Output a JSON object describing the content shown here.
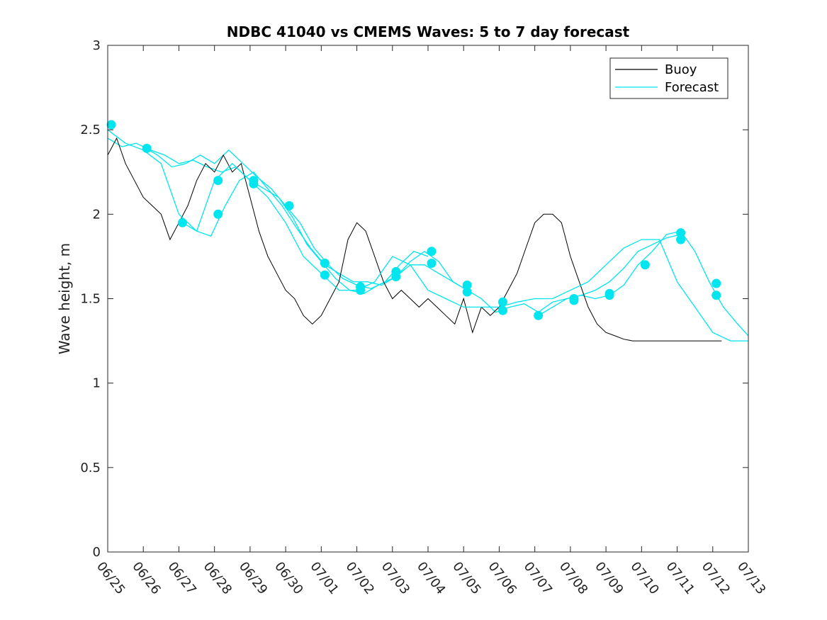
{
  "chart_data": {
    "type": "line",
    "title": "NDBC 41040 vs CMEMS Waves: 5 to 7 day forecast",
    "xlabel": "",
    "ylabel": "Wave height, m",
    "ylim": [
      0,
      3
    ],
    "y_ticks": [
      "0",
      "0.5",
      "1",
      "1.5",
      "2",
      "2.5",
      "3"
    ],
    "x_ticks": [
      "06/25",
      "06/26",
      "06/27",
      "06/28",
      "06/29",
      "06/30",
      "07/01",
      "07/02",
      "07/03",
      "07/04",
      "07/05",
      "07/06",
      "07/07",
      "07/08",
      "07/09",
      "07/10",
      "07/11",
      "07/12",
      "07/13"
    ],
    "grid": false,
    "legend_position": "top-right",
    "legend": [
      "Buoy",
      "Forecast"
    ],
    "colors": {
      "buoy": "#000000",
      "forecast": "#00e5ee",
      "axis": "#262626"
    },
    "series": [
      {
        "name": "Buoy",
        "x": [
          0,
          0.25,
          0.5,
          0.75,
          1,
          1.25,
          1.5,
          1.75,
          2,
          2.25,
          2.5,
          2.75,
          3,
          3.25,
          3.5,
          3.75,
          4,
          4.25,
          4.5,
          4.75,
          5,
          5.25,
          5.5,
          5.75,
          6,
          6.25,
          6.5,
          6.75,
          7,
          7.25,
          7.5,
          7.75,
          8,
          8.25,
          8.5,
          8.75,
          9,
          9.25,
          9.5,
          9.75,
          10,
          10.25,
          10.5,
          10.75,
          11,
          11.25,
          11.5,
          11.75,
          12,
          12.25,
          12.5,
          12.75,
          13,
          13.25,
          13.5,
          13.75,
          14,
          14.25,
          14.5,
          14.75,
          15,
          15.25,
          15.5,
          15.75,
          16,
          16.25,
          16.5,
          16.75,
          17,
          17.25
        ],
        "values": [
          2.35,
          2.45,
          2.3,
          2.2,
          2.1,
          2.05,
          2.0,
          1.85,
          1.95,
          2.05,
          2.2,
          2.3,
          2.25,
          2.35,
          2.25,
          2.3,
          2.1,
          1.9,
          1.75,
          1.65,
          1.55,
          1.5,
          1.4,
          1.35,
          1.4,
          1.5,
          1.6,
          1.85,
          1.95,
          1.9,
          1.75,
          1.6,
          1.5,
          1.55,
          1.5,
          1.45,
          1.5,
          1.45,
          1.4,
          1.35,
          1.5,
          1.3,
          1.45,
          1.4,
          1.45,
          1.55,
          1.65,
          1.8,
          1.95,
          2.0,
          2.0,
          1.95,
          1.75,
          1.6,
          1.45,
          1.35,
          1.3,
          1.28,
          1.26,
          1.25,
          1.25,
          1.25,
          1.25,
          1.25,
          1.25,
          1.25,
          1.25,
          1.25,
          1.25,
          1.25
        ]
      },
      {
        "name": "Forecast",
        "x": [
          0,
          0.5,
          1,
          1.5,
          2,
          2.5,
          3,
          3.5,
          4,
          4.5,
          5,
          5.5,
          6,
          6.5,
          7,
          7.5,
          8,
          8.5,
          9,
          9.5,
          10,
          10.5,
          11,
          11.5,
          12,
          12.5,
          13,
          13.5,
          14,
          14.5,
          15,
          15.5,
          16,
          16.5,
          17,
          17.5,
          18
        ],
        "values": [
          2.5,
          2.42,
          2.38,
          2.3,
          2.0,
          1.9,
          2.2,
          2.3,
          2.2,
          2.1,
          1.95,
          1.75,
          1.65,
          1.55,
          1.55,
          1.6,
          1.75,
          1.7,
          1.55,
          1.5,
          1.45,
          1.45,
          1.45,
          1.48,
          1.5,
          1.5,
          1.55,
          1.6,
          1.7,
          1.8,
          1.85,
          1.85,
          1.6,
          1.45,
          1.3,
          1.25,
          1.25
        ]
      }
    ],
    "forecast_markers": [
      {
        "x": 0.1,
        "y": 2.53
      },
      {
        "x": 1.1,
        "y": 2.39
      },
      {
        "x": 2.1,
        "y": 1.95
      },
      {
        "x": 3.1,
        "y": 2.2
      },
      {
        "x": 3.1,
        "y": 2.0
      },
      {
        "x": 4.1,
        "y": 2.2
      },
      {
        "x": 4.1,
        "y": 2.18
      },
      {
        "x": 5.1,
        "y": 2.05
      },
      {
        "x": 6.1,
        "y": 1.71
      },
      {
        "x": 6.1,
        "y": 1.64
      },
      {
        "x": 7.1,
        "y": 1.57
      },
      {
        "x": 7.1,
        "y": 1.55
      },
      {
        "x": 8.1,
        "y": 1.66
      },
      {
        "x": 8.1,
        "y": 1.63
      },
      {
        "x": 9.1,
        "y": 1.78
      },
      {
        "x": 9.1,
        "y": 1.71
      },
      {
        "x": 10.1,
        "y": 1.58
      },
      {
        "x": 10.1,
        "y": 1.54
      },
      {
        "x": 11.1,
        "y": 1.48
      },
      {
        "x": 11.1,
        "y": 1.43
      },
      {
        "x": 12.1,
        "y": 1.4
      },
      {
        "x": 13.1,
        "y": 1.5
      },
      {
        "x": 13.1,
        "y": 1.49
      },
      {
        "x": 14.1,
        "y": 1.53
      },
      {
        "x": 14.1,
        "y": 1.52
      },
      {
        "x": 15.1,
        "y": 1.7
      },
      {
        "x": 16.1,
        "y": 1.89
      },
      {
        "x": 16.1,
        "y": 1.85
      },
      {
        "x": 17.1,
        "y": 1.59
      },
      {
        "x": 17.1,
        "y": 1.52
      }
    ],
    "forecast_traces": [
      {
        "x": [
          0,
          0.4,
          0.8,
          1.2,
          1.6,
          2.0,
          2.4,
          2.8,
          3.2,
          3.6,
          4.0,
          4.4,
          4.8,
          5.2,
          5.6,
          6.0,
          6.4,
          6.8,
          7.2,
          7.6,
          8.0
        ],
        "values": [
          2.45,
          2.4,
          2.42,
          2.38,
          2.35,
          2.3,
          2.32,
          2.28,
          2.25,
          2.28,
          2.2,
          2.15,
          2.1,
          1.98,
          1.82,
          1.72,
          1.62,
          1.55,
          1.53,
          1.58,
          1.62
        ]
      },
      {
        "x": [
          1.0,
          1.4,
          1.8,
          2.2,
          2.6,
          3.0,
          3.4,
          3.8,
          4.2,
          4.6,
          5.0,
          5.4,
          5.8,
          6.2,
          6.6,
          7.0,
          7.4,
          7.8,
          8.2,
          8.6,
          9.0
        ],
        "values": [
          2.4,
          2.35,
          2.28,
          2.3,
          2.35,
          2.3,
          2.38,
          2.3,
          2.22,
          2.15,
          2.05,
          1.95,
          1.8,
          1.7,
          1.62,
          1.58,
          1.56,
          1.6,
          1.7,
          1.78,
          1.75
        ]
      },
      {
        "x": [
          2.1,
          2.5,
          2.9,
          3.3,
          3.7,
          4.1,
          4.5,
          4.9,
          5.3,
          5.7,
          6.1,
          6.5,
          6.9,
          7.3,
          7.7,
          8.1,
          8.5,
          8.9,
          9.3,
          9.7,
          10.1
        ],
        "values": [
          1.95,
          1.9,
          1.87,
          2.05,
          2.2,
          2.25,
          2.15,
          2.05,
          1.92,
          1.8,
          1.7,
          1.65,
          1.6,
          1.6,
          1.58,
          1.63,
          1.7,
          1.7,
          1.65,
          1.6,
          1.55
        ]
      },
      {
        "x": [
          8.1,
          8.5,
          8.9,
          9.3,
          9.7,
          10.1,
          10.5,
          10.9,
          11.3,
          11.7,
          12.1,
          12.5,
          12.9,
          13.3,
          13.7,
          14.1,
          14.5,
          14.9,
          15.3,
          15.7,
          16.1
        ],
        "values": [
          1.63,
          1.72,
          1.78,
          1.72,
          1.6,
          1.55,
          1.5,
          1.42,
          1.45,
          1.47,
          1.42,
          1.48,
          1.5,
          1.52,
          1.55,
          1.6,
          1.68,
          1.78,
          1.82,
          1.86,
          1.88
        ]
      },
      {
        "x": [
          12.1,
          12.5,
          12.9,
          13.3,
          13.7,
          14.1,
          14.5,
          14.9,
          15.3,
          15.7,
          16.1,
          16.5,
          16.9,
          17.3,
          17.7,
          18.0
        ],
        "values": [
          1.4,
          1.45,
          1.5,
          1.52,
          1.5,
          1.52,
          1.58,
          1.7,
          1.78,
          1.88,
          1.9,
          1.78,
          1.6,
          1.45,
          1.35,
          1.28
        ]
      }
    ]
  }
}
